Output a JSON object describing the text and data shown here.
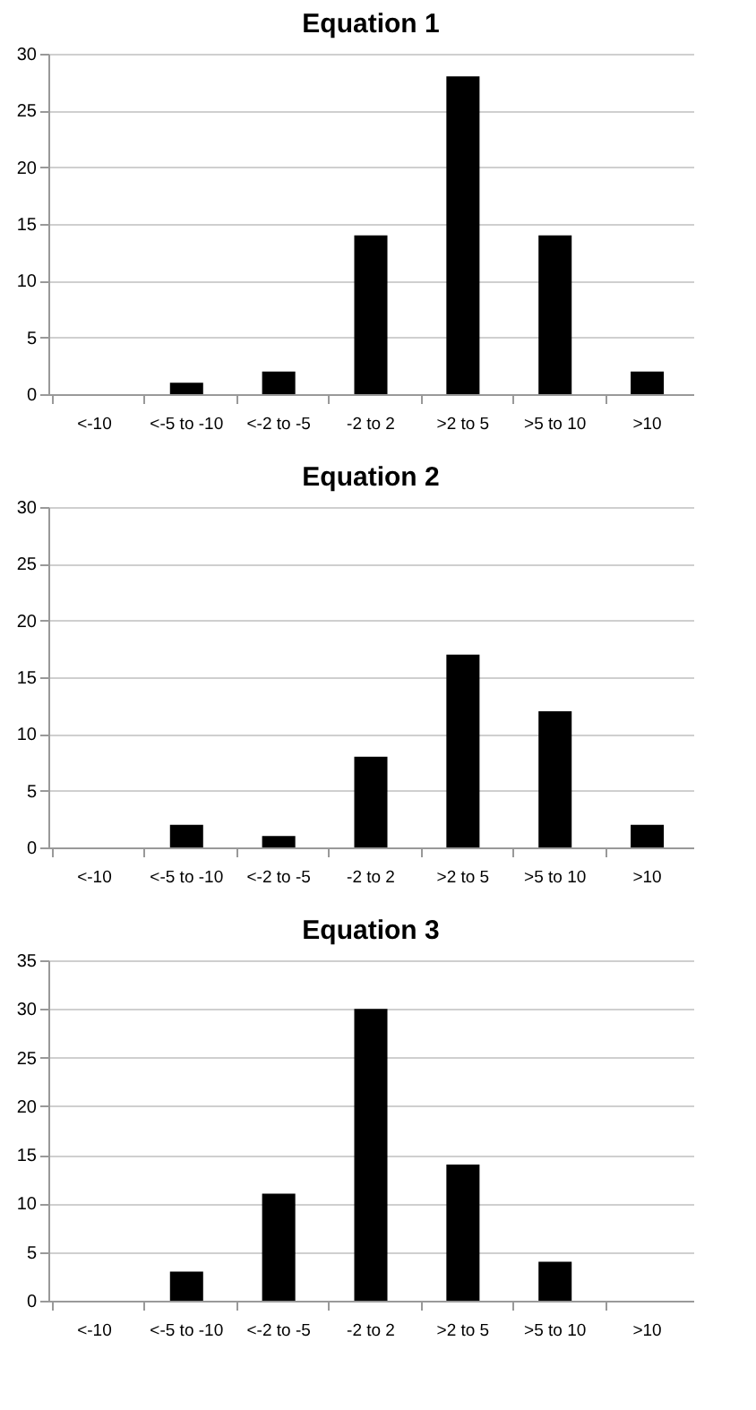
{
  "chart_data": [
    {
      "type": "bar",
      "title": "Equation 1",
      "categories": [
        "<-10",
        "<-5 to -10",
        "<-2 to -5",
        "-2 to 2",
        ">2 to 5",
        ">5 to 10",
        ">10"
      ],
      "values": [
        0,
        1,
        2,
        14,
        28,
        14,
        2
      ],
      "color": "#000000",
      "ylim": [
        0,
        30
      ],
      "yticks": [
        0,
        5,
        10,
        15,
        20,
        25,
        30
      ],
      "grid": "y"
    },
    {
      "type": "bar",
      "title": "Equation 2",
      "categories": [
        "<-10",
        "<-5 to -10",
        "<-2 to -5",
        "-2 to 2",
        ">2 to 5",
        ">5 to 10",
        ">10"
      ],
      "values": [
        0,
        2,
        1,
        8,
        17,
        12,
        2
      ],
      "color": "#000000",
      "ylim": [
        0,
        30
      ],
      "yticks": [
        0,
        5,
        10,
        15,
        20,
        25,
        30
      ],
      "grid": "y"
    },
    {
      "type": "bar",
      "title": "Equation 3",
      "categories": [
        "<-10",
        "<-5 to -10",
        "<-2 to -5",
        "-2 to 2",
        ">2 to 5",
        ">5 to 10",
        ">10"
      ],
      "values": [
        0,
        3,
        11,
        30,
        14,
        4,
        0
      ],
      "color": "#000000",
      "ylim": [
        0,
        35
      ],
      "yticks": [
        0,
        5,
        10,
        15,
        20,
        25,
        30,
        35
      ],
      "grid": "y"
    }
  ]
}
